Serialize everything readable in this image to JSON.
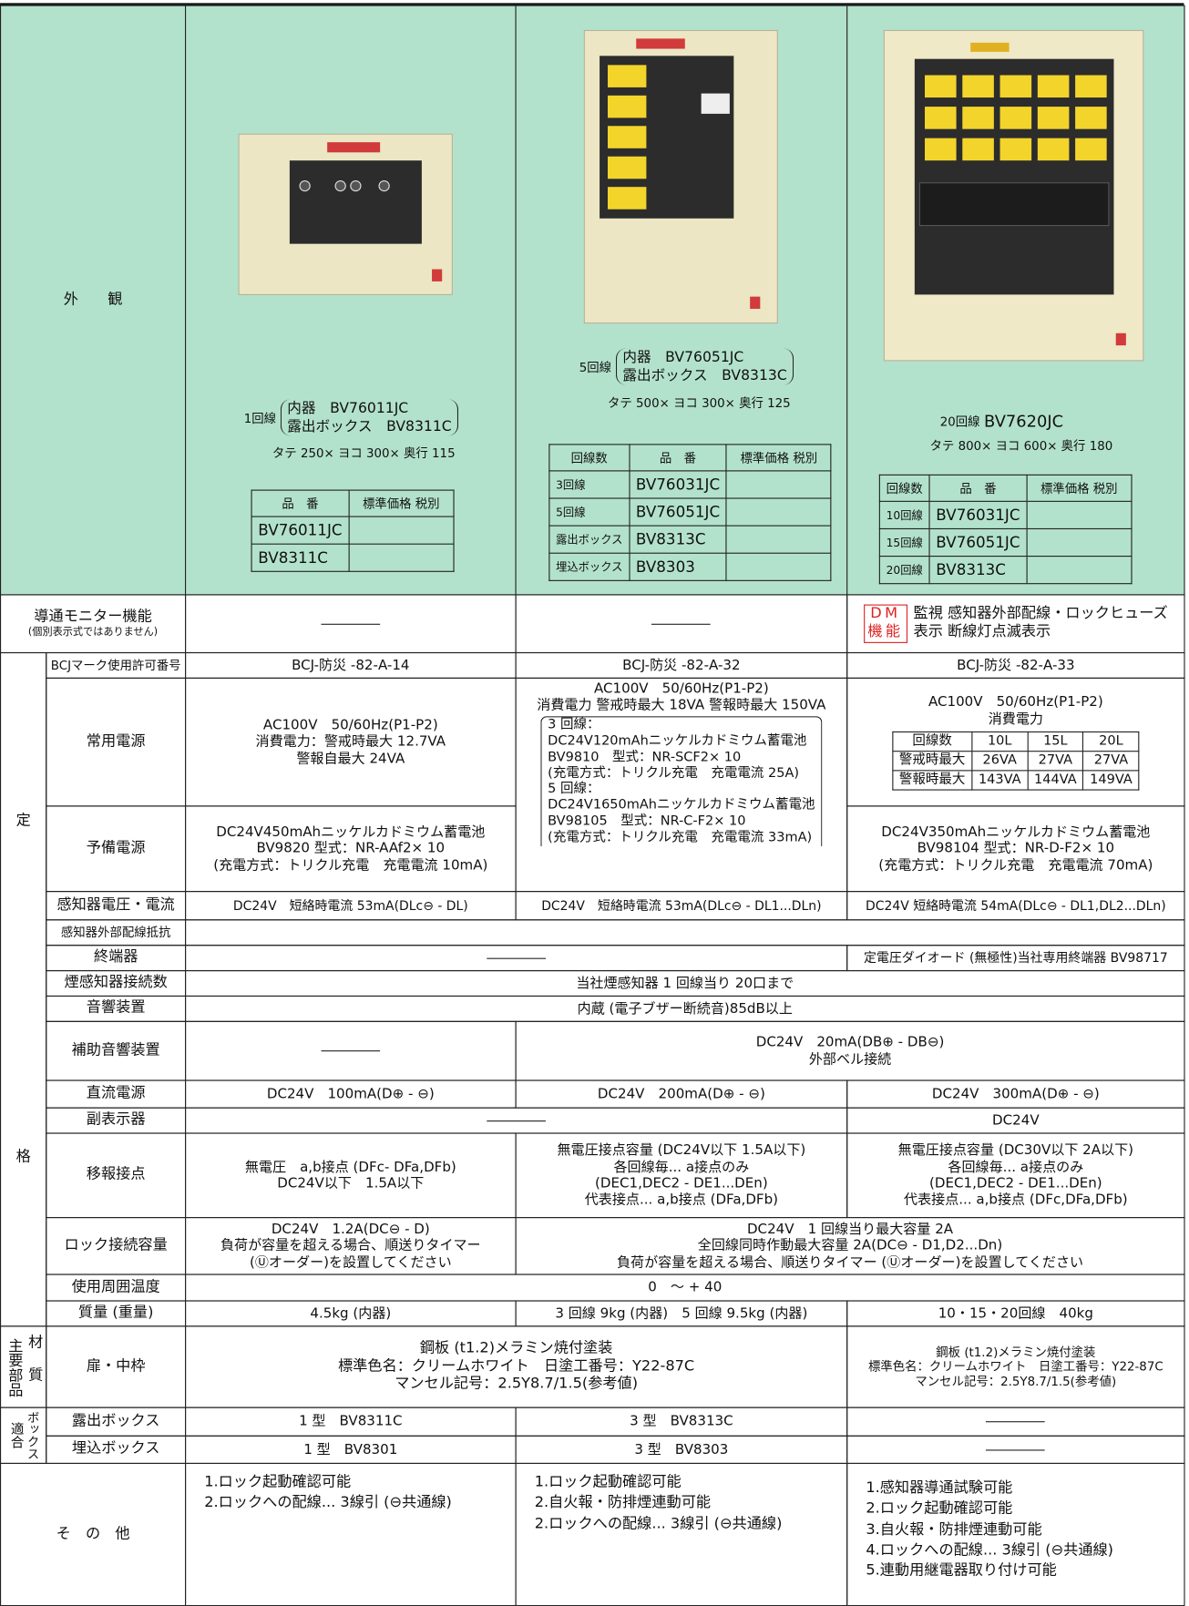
{
  "header": {
    "label": "外　　観",
    "products": [
      {
        "circuits": "1回線",
        "items": [
          "内器　BV76011JC",
          "露出ボックス　BV8311C"
        ],
        "size": "タテ 250× ヨコ 300× 奥行 115",
        "table": {
          "columns": [
            "品　番",
            "標準価格 税別"
          ],
          "rows": [
            [
              "BV76011JC"
            ],
            [
              "BV8311C"
            ]
          ]
        }
      },
      {
        "circuits": "5回線",
        "items": [
          "内器　BV76051JC",
          "露出ボックス　BV8313C"
        ],
        "size": "タテ 500× ヨコ 300× 奥行 125",
        "table": {
          "columns": [
            "回線数",
            "品　番",
            "標準価格 税別"
          ],
          "rows": [
            [
              "3回線",
              "BV76031JC"
            ],
            [
              "5回線",
              "BV76051JC"
            ],
            [
              "露出ボックス",
              "BV8313C"
            ],
            [
              "埋込ボックス",
              "BV8303"
            ]
          ]
        }
      },
      {
        "circuits": "20回線",
        "items": [
          "BV7620JC"
        ],
        "size": "タテ 800× ヨコ 600× 奥行 180",
        "table": {
          "columns": [
            "回線数",
            "品　番",
            "標準価格 税別"
          ],
          "rows": [
            [
              "10回線",
              "BV76031JC"
            ],
            [
              "15回線",
              "BV76051JC"
            ],
            [
              "20回線",
              "BV8313C"
            ]
          ]
        }
      }
    ]
  },
  "monitor": {
    "label": [
      "導通モニター機能",
      "(個別表示式ではありません)"
    ],
    "badge": [
      "DM",
      "機能"
    ],
    "detail": [
      "監視 感知器外部配線・ロックヒューズ",
      "表示 断線灯点滅表示"
    ]
  },
  "spec": {
    "group": [
      "定",
      "格"
    ],
    "rows": [
      {
        "label": "BCJマーク使用許可番号",
        "cells": [
          "BCJ-防災 -82-A-14",
          "BCJ-防災 -82-A-32",
          "BCJ-防災 -82-A-33"
        ]
      },
      {
        "label": "常用電源",
        "cells": [
          [
            "AC100V　50/60Hz(P1-P2)",
            "消費電力：警戒時最大 12.7VA",
            "警報自最大 24VA"
          ],
          [
            "AC100V　50/60Hz(P1-P2)",
            "消費電力 警戒時最大 18VA 警報時最大 150VA"
          ],
          {
            "lines": [
              "AC100V　50/60Hz(P1-P2)",
              "消費電力"
            ],
            "table": [
              [
                "回線数",
                "10L",
                "15L",
                "20L"
              ],
              [
                "警戒時最大",
                "26VA",
                "27VA",
                "27VA"
              ],
              [
                "警報時最大",
                "143VA",
                "144VA",
                "149VA"
              ]
            ]
          }
        ]
      },
      {
        "label": "予備電源",
        "cells": [
          [
            "DC24V450mAhニッケルカドミウム蓄電池",
            "BV9820 型式：NR-AAf2× 10",
            "(充電方式：トリクル充電　充電電流 10mA)"
          ],
          [
            "3 回線：",
            "DC24V120mAhニッケルカドミウム蓄電池",
            "BV9810　型式：NR-SCF2× 10",
            "(充電方式：トリクル充電　充電電流 25A)",
            "5 回線：",
            "DC24V1650mAhニッケルカドミウム蓄電池",
            "BV98105　型式：NR-C-F2× 10",
            "(充電方式：トリクル充電　充電電流 33mA)"
          ],
          [
            "DC24V350mAhニッケルカドミウム蓄電池",
            "BV98104 型式：NR-D-F2× 10",
            "(充電方式：トリクル充電　充電電流 70mA)"
          ]
        ]
      },
      {
        "label": "感知器電圧・電流",
        "cells": [
          "DC24V　短絡時電流 53mA(DLc⊖ - DL)",
          "DC24V　短絡時電流 53mA(DLc⊖ - DL1...DLn)",
          "DC24V 短絡時電流 54mA(DLc⊖ - DL1,DL2...DLn)"
        ]
      },
      {
        "label": "感知器外部配線抵抗",
        "cells": []
      },
      {
        "label": "終端器",
        "cells": [
          "定電圧ダイオード (無極性)当社専用終端器 BV98717"
        ]
      },
      {
        "label": "煙感知器接続数",
        "cells": [
          "当社煙感知器 1 回線当り 20口まで"
        ]
      },
      {
        "label": "音響装置",
        "cells": [
          "内蔵 (電子ブザー断続音)85dB以上"
        ]
      },
      {
        "label": "補助音響装置",
        "cells": [
          [
            "DC24V　20mA(DB⊕ - DB⊖)",
            "外部ベル接続"
          ]
        ]
      },
      {
        "label": "直流電源",
        "cells": [
          "DC24V　100mA(D⊕ - ⊖)",
          "DC24V　200mA(D⊕ - ⊖)",
          "DC24V　300mA(D⊕ - ⊖)"
        ]
      },
      {
        "label": "副表示器",
        "cells": [
          "DC24V"
        ]
      },
      {
        "label": "移報接点",
        "cells": [
          [
            "無電圧　a,b接点 (DFc- DFa,DFb)",
            "DC24V以下　1.5A以下"
          ],
          [
            "無電圧接点容量 (DC24V以下 1.5A以下)",
            "各回線毎... a接点のみ",
            "(DEC1,DEC2 - DE1...DEn)",
            "代表接点... a,b接点 (DFa,DFb)"
          ],
          [
            "無電圧接点容量 (DC30V以下 2A以下)",
            "各回線毎... a接点のみ",
            "(DEC1,DEC2 - DE1...DEn)",
            "代表接点... a,b接点 (DFc,DFa,DFb)"
          ]
        ]
      },
      {
        "label": "ロック接続容量",
        "cells": [
          [
            "DC24V　1.2A(DC⊖ - D)",
            "負荷が容量を超える場合、順送りタイマー",
            "(Ⓤオーダー)を設置してください"
          ],
          [
            "DC24V　1 回線当り最大容量 2A",
            "全回線同時作動最大容量 2A(DC⊖ - D1,D2...Dn)",
            "負荷が容量を超える場合、順送りタイマー (Ⓤオーダー)を設置してください"
          ]
        ]
      },
      {
        "label": "使用周囲温度",
        "cells": [
          "0　～ + 40"
        ]
      },
      {
        "label": "質量 (重量)",
        "cells": [
          "4.5kg (内器)",
          "3 回線 9kg (内器)　5 回線 9.5kg (内器)",
          "10・15・20回線　40kg"
        ]
      }
    ]
  },
  "materials": {
    "group": [
      "主要部品",
      "材質"
    ],
    "label": "扉・中枠",
    "cells": [
      [
        "鋼板 (t1.2)メラミン焼付塗装",
        "標準色名：クリームホワイト　日塗工番号：Y22-87C",
        "マンセル記号：2.5Y8.7/1.5(参考値)"
      ],
      [
        "鋼板 (t1.2)メラミン焼付塗装",
        "標準色名：クリームホワイト　日塗工番号：Y22-87C",
        "マンセル記号：2.5Y8.7/1.5(参考値)"
      ]
    ]
  },
  "boxes": {
    "group": [
      "適合",
      "ボックス"
    ],
    "rows": [
      {
        "label": "露出ボックス",
        "cells": [
          "1 型　BV8311C",
          "3 型　BV8313C"
        ]
      },
      {
        "label": "埋込ボックス",
        "cells": [
          "1 型　BV8301",
          "3 型　BV8303"
        ]
      }
    ]
  },
  "other": {
    "label": "そ　の　他",
    "cells": [
      [
        "1.ロック起動確認可能",
        "2.ロックへの配線... 3線引 (⊖共通線)"
      ],
      [
        "1.ロック起動確認可能",
        "2.自火報・防排煙連動可能",
        "2.ロックへの配線... 3線引 (⊖共通線)"
      ],
      [
        "1.感知器導通試験可能",
        "2.ロック起動確認可能",
        "3.自火報・防排煙連動可能",
        "4.ロックへの配線... 3線引 (⊖共通線)",
        "5.連動用継電器取り付け可能"
      ]
    ]
  }
}
